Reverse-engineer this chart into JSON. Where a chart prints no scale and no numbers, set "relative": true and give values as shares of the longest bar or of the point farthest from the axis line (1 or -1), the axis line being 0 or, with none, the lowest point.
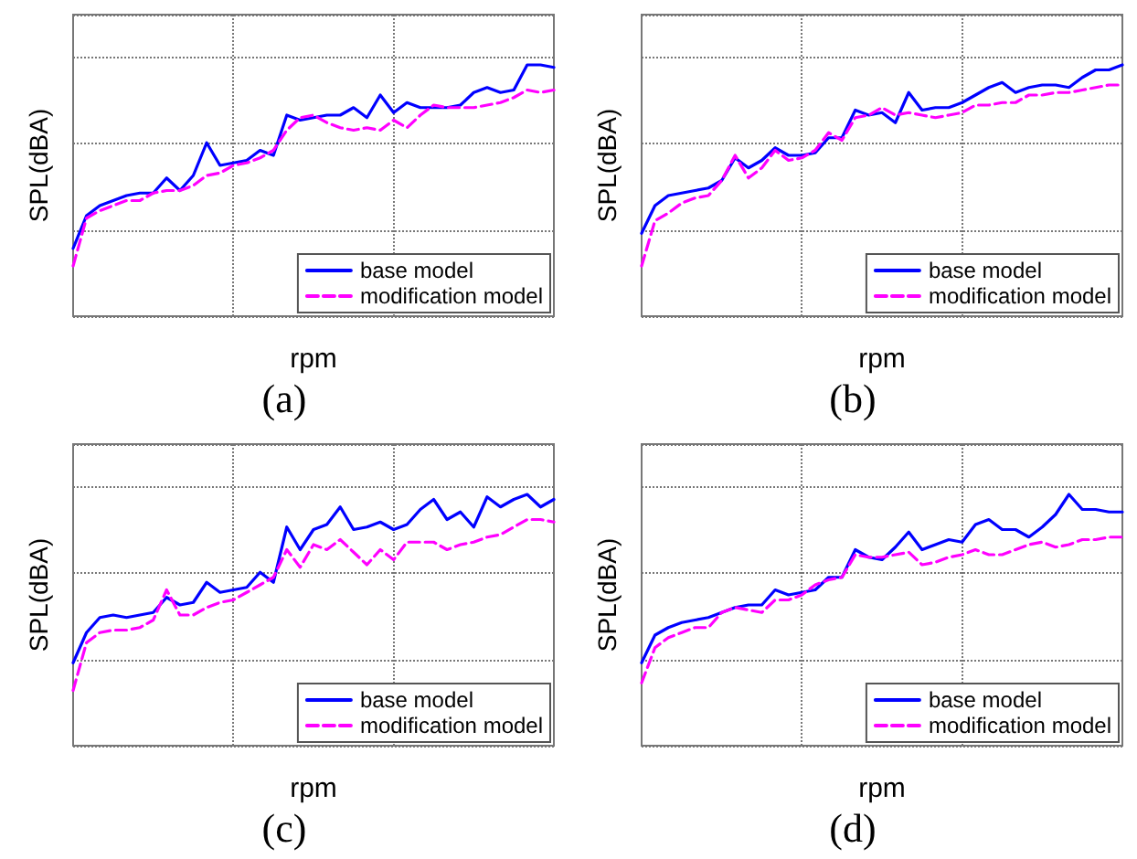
{
  "chart_data": [
    {
      "type": "line",
      "relative": true,
      "xlabel": "rpm",
      "ylabel": "SPL(dBA)",
      "annotations": [
        "(a)"
      ],
      "grid": true,
      "legend": "bottom right",
      "categories": [
        null,
        null,
        null,
        null,
        null,
        null,
        null,
        null,
        null,
        null,
        null,
        null,
        null,
        null,
        null,
        null,
        null,
        null,
        null,
        null,
        null,
        null,
        null,
        null,
        null,
        null,
        null,
        null,
        null,
        null,
        null,
        null,
        null,
        null,
        null,
        null,
        null
      ],
      "series": [
        {
          "name": "base model",
          "color": "#0000ff",
          "line_style": "solid",
          "values": [
            0.27,
            0.4,
            0.44,
            0.46,
            0.48,
            0.49,
            0.49,
            0.55,
            0.5,
            0.56,
            0.69,
            0.6,
            0.61,
            0.62,
            0.66,
            0.64,
            0.8,
            0.78,
            0.79,
            0.8,
            0.8,
            0.83,
            0.79,
            0.88,
            0.81,
            0.85,
            0.83,
            0.83,
            0.83,
            0.84,
            0.89,
            0.91,
            0.89,
            0.9,
            1,
            1,
            0.99
          ]
        },
        {
          "name": "modification model",
          "color": "#ff00ff",
          "line_style": "dashed",
          "values": [
            0.2,
            0.39,
            0.42,
            0.44,
            0.46,
            0.46,
            0.49,
            0.5,
            0.5,
            0.52,
            0.56,
            0.57,
            0.6,
            0.61,
            0.63,
            0.66,
            0.74,
            0.79,
            0.8,
            0.77,
            0.75,
            0.74,
            0.75,
            0.74,
            0.78,
            0.75,
            0.8,
            0.84,
            0.83,
            0.83,
            0.83,
            0.84,
            0.85,
            0.87,
            0.9,
            0.89,
            0.9
          ]
        }
      ]
    },
    {
      "type": "line",
      "relative": true,
      "xlabel": "rpm",
      "ylabel": "SPL(dBA)",
      "annotations": [
        "(b)"
      ],
      "grid": true,
      "legend": "bottom right",
      "categories": [
        null,
        null,
        null,
        null,
        null,
        null,
        null,
        null,
        null,
        null,
        null,
        null,
        null,
        null,
        null,
        null,
        null,
        null,
        null,
        null,
        null,
        null,
        null,
        null,
        null,
        null,
        null,
        null,
        null,
        null,
        null,
        null,
        null,
        null,
        null,
        null,
        null
      ],
      "series": [
        {
          "name": "base model",
          "color": "#0000ff",
          "line_style": "solid",
          "values": [
            0.33,
            0.44,
            0.48,
            0.49,
            0.5,
            0.51,
            0.54,
            0.63,
            0.59,
            0.62,
            0.67,
            0.64,
            0.64,
            0.65,
            0.71,
            0.71,
            0.82,
            0.8,
            0.81,
            0.77,
            0.89,
            0.82,
            0.83,
            0.83,
            0.85,
            0.88,
            0.91,
            0.93,
            0.89,
            0.91,
            0.92,
            0.92,
            0.91,
            0.95,
            0.98,
            0.98,
            1
          ]
        },
        {
          "name": "modification model",
          "color": "#ff00ff",
          "line_style": "dashed",
          "values": [
            0.2,
            0.38,
            0.41,
            0.45,
            0.47,
            0.48,
            0.54,
            0.64,
            0.55,
            0.59,
            0.66,
            0.62,
            0.63,
            0.66,
            0.73,
            0.7,
            0.79,
            0.8,
            0.83,
            0.8,
            0.81,
            0.8,
            0.79,
            0.8,
            0.81,
            0.84,
            0.84,
            0.85,
            0.85,
            0.88,
            0.88,
            0.89,
            0.89,
            0.9,
            0.91,
            0.92,
            0.92
          ]
        }
      ]
    },
    {
      "type": "line",
      "relative": true,
      "xlabel": "rpm",
      "ylabel": "SPL(dBA)",
      "annotations": [
        "(c)"
      ],
      "grid": true,
      "legend": "bottom right",
      "categories": [
        null,
        null,
        null,
        null,
        null,
        null,
        null,
        null,
        null,
        null,
        null,
        null,
        null,
        null,
        null,
        null,
        null,
        null,
        null,
        null,
        null,
        null,
        null,
        null,
        null,
        null,
        null,
        null,
        null,
        null,
        null,
        null,
        null,
        null,
        null,
        null,
        null
      ],
      "series": [
        {
          "name": "base model",
          "color": "#0000ff",
          "line_style": "solid",
          "values": [
            0.33,
            0.45,
            0.51,
            0.52,
            0.51,
            0.52,
            0.53,
            0.59,
            0.56,
            0.57,
            0.65,
            0.61,
            0.62,
            0.63,
            0.69,
            0.65,
            0.87,
            0.78,
            0.86,
            0.88,
            0.95,
            0.86,
            0.87,
            0.89,
            0.86,
            0.88,
            0.94,
            0.98,
            0.9,
            0.93,
            0.87,
            0.99,
            0.95,
            0.98,
            1,
            0.95,
            0.98
          ]
        },
        {
          "name": "modification model",
          "color": "#ff00ff",
          "line_style": "dashed",
          "values": [
            0.22,
            0.41,
            0.45,
            0.46,
            0.46,
            0.47,
            0.5,
            0.62,
            0.52,
            0.52,
            0.55,
            0.57,
            0.58,
            0.61,
            0.64,
            0.67,
            0.78,
            0.71,
            0.8,
            0.78,
            0.82,
            0.77,
            0.72,
            0.78,
            0.74,
            0.81,
            0.81,
            0.81,
            0.78,
            0.8,
            0.81,
            0.83,
            0.84,
            0.87,
            0.9,
            0.9,
            0.89
          ]
        }
      ]
    },
    {
      "type": "line",
      "relative": true,
      "xlabel": "rpm",
      "ylabel": "SPL(dBA)",
      "annotations": [
        "(d)"
      ],
      "grid": true,
      "legend": "bottom right",
      "categories": [
        null,
        null,
        null,
        null,
        null,
        null,
        null,
        null,
        null,
        null,
        null,
        null,
        null,
        null,
        null,
        null,
        null,
        null,
        null,
        null,
        null,
        null,
        null,
        null,
        null,
        null,
        null,
        null,
        null,
        null,
        null,
        null,
        null,
        null,
        null,
        null,
        null
      ],
      "series": [
        {
          "name": "base model",
          "color": "#0000ff",
          "line_style": "solid",
          "values": [
            0.33,
            0.44,
            0.47,
            0.49,
            0.5,
            0.51,
            0.53,
            0.55,
            0.56,
            0.56,
            0.62,
            0.6,
            0.61,
            0.62,
            0.67,
            0.67,
            0.78,
            0.75,
            0.74,
            0.79,
            0.85,
            0.78,
            0.8,
            0.82,
            0.81,
            0.88,
            0.9,
            0.86,
            0.86,
            0.83,
            0.87,
            0.92,
            1,
            0.94,
            0.94,
            0.93,
            0.93
          ]
        },
        {
          "name": "modification model",
          "color": "#ff00ff",
          "line_style": "dashed",
          "values": [
            0.25,
            0.39,
            0.43,
            0.45,
            0.47,
            0.47,
            0.53,
            0.55,
            0.54,
            0.53,
            0.58,
            0.58,
            0.6,
            0.64,
            0.66,
            0.67,
            0.76,
            0.75,
            0.75,
            0.76,
            0.77,
            0.72,
            0.73,
            0.75,
            0.76,
            0.78,
            0.76,
            0.76,
            0.78,
            0.8,
            0.81,
            0.79,
            0.8,
            0.82,
            0.82,
            0.83,
            0.83
          ]
        }
      ]
    }
  ]
}
